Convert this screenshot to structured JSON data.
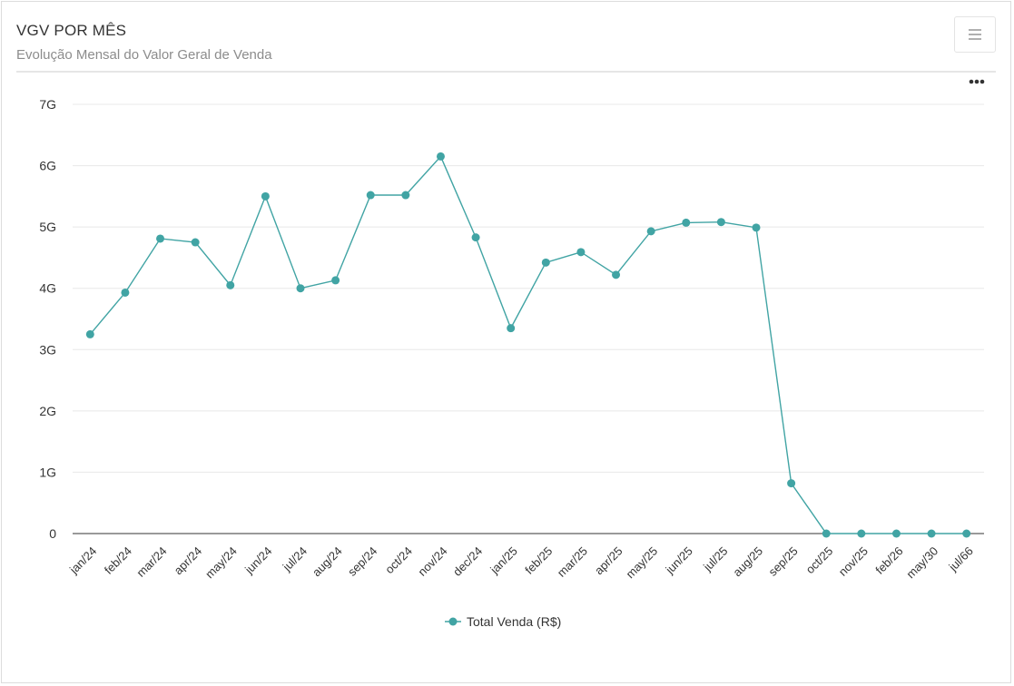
{
  "header": {
    "title": "VGV POR MÊS",
    "subtitle": "Evolução Mensal do Valor Geral de Venda",
    "menu_icon": "hamburger-menu-icon"
  },
  "chart_menu_icon": "ellipsis-icon",
  "colors": {
    "series": "#41a4a4",
    "grid": "#e8e8e8",
    "axis": "#333333",
    "text": "#333333"
  },
  "chart_data": {
    "type": "line",
    "categories": [
      "jan/24",
      "feb/24",
      "mar/24",
      "apr/24",
      "may/24",
      "jun/24",
      "jul/24",
      "aug/24",
      "sep/24",
      "oct/24",
      "nov/24",
      "dec/24",
      "jan/25",
      "feb/25",
      "mar/25",
      "apr/25",
      "may/25",
      "jun/25",
      "jul/25",
      "aug/25",
      "sep/25",
      "oct/25",
      "nov/25",
      "feb/26",
      "may/30",
      "jul/66"
    ],
    "series": [
      {
        "name": "Total Venda (R$)",
        "values": [
          3.25,
          3.93,
          4.81,
          4.75,
          4.05,
          5.5,
          4.0,
          4.13,
          5.52,
          5.52,
          6.15,
          4.83,
          3.35,
          4.42,
          4.59,
          4.22,
          4.93,
          5.07,
          5.08,
          4.99,
          0.82,
          0,
          0,
          0,
          0,
          0
        ]
      }
    ],
    "y_ticks": [
      "0",
      "1G",
      "2G",
      "3G",
      "4G",
      "5G",
      "6G",
      "7G"
    ],
    "ylim": [
      0,
      7
    ],
    "grid": true,
    "legend": "bottom-center"
  }
}
